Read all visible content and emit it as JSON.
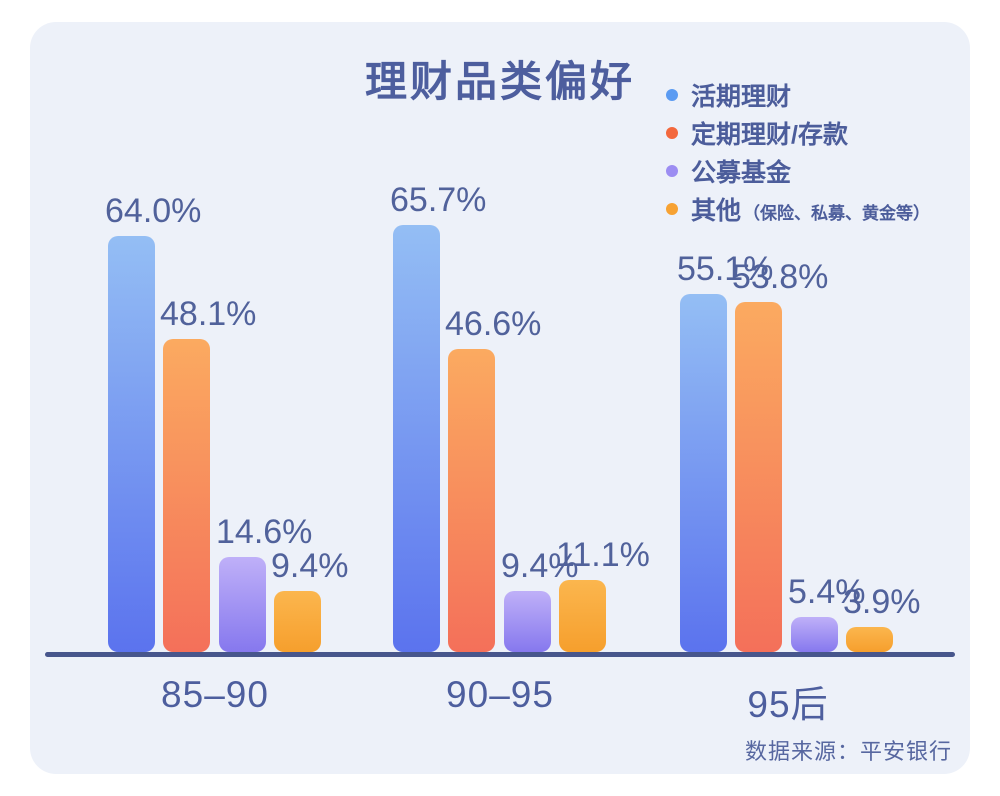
{
  "title": "理财品类偏好",
  "source": "数据来源：平安银行",
  "legend": [
    {
      "label": "活期理财",
      "note": "",
      "dot_color": "#5B9BF2"
    },
    {
      "label": "定期理财/存款",
      "note": "",
      "dot_color": "#F3683D"
    },
    {
      "label": "公募基金",
      "note": "",
      "dot_color": "#9C8DF2"
    },
    {
      "label": "其他",
      "note": "（保险、私募、黄金等）",
      "dot_color": "#F7A233"
    }
  ],
  "chart_data": {
    "type": "bar",
    "title": "理财品类偏好",
    "categories": [
      "85–90",
      "90–95",
      "95后"
    ],
    "series": [
      {
        "name": "活期理财",
        "values": [
          64.0,
          65.7,
          55.1
        ],
        "gradient_top": "#94BEF4",
        "gradient_bottom": "#5B73EE"
      },
      {
        "name": "定期理财/存款",
        "values": [
          48.1,
          46.6,
          53.8
        ],
        "gradient_top": "#FBAA60",
        "gradient_bottom": "#F4705A"
      },
      {
        "name": "公募基金",
        "values": [
          14.6,
          9.4,
          5.4
        ],
        "gradient_top": "#BFB0F8",
        "gradient_bottom": "#8678EE"
      },
      {
        "name": "其他（保险、私募、黄金等）",
        "values": [
          9.4,
          11.1,
          3.9
        ],
        "gradient_top": "#FBB64E",
        "gradient_bottom": "#F69F2D"
      }
    ],
    "value_suffix": "%",
    "value_decimals": 1,
    "ylim": [
      0,
      70
    ],
    "grid": false,
    "legend_position": "top-right",
    "xlabel": "",
    "ylabel": "",
    "source_note": "数据来源：平安银行",
    "colors": {
      "panel_background": "#EDF1F9",
      "page_background": "#FFFFFF",
      "axis_line": "#47568C",
      "text": "#4D5E9E",
      "value_label": "#51629B"
    }
  }
}
